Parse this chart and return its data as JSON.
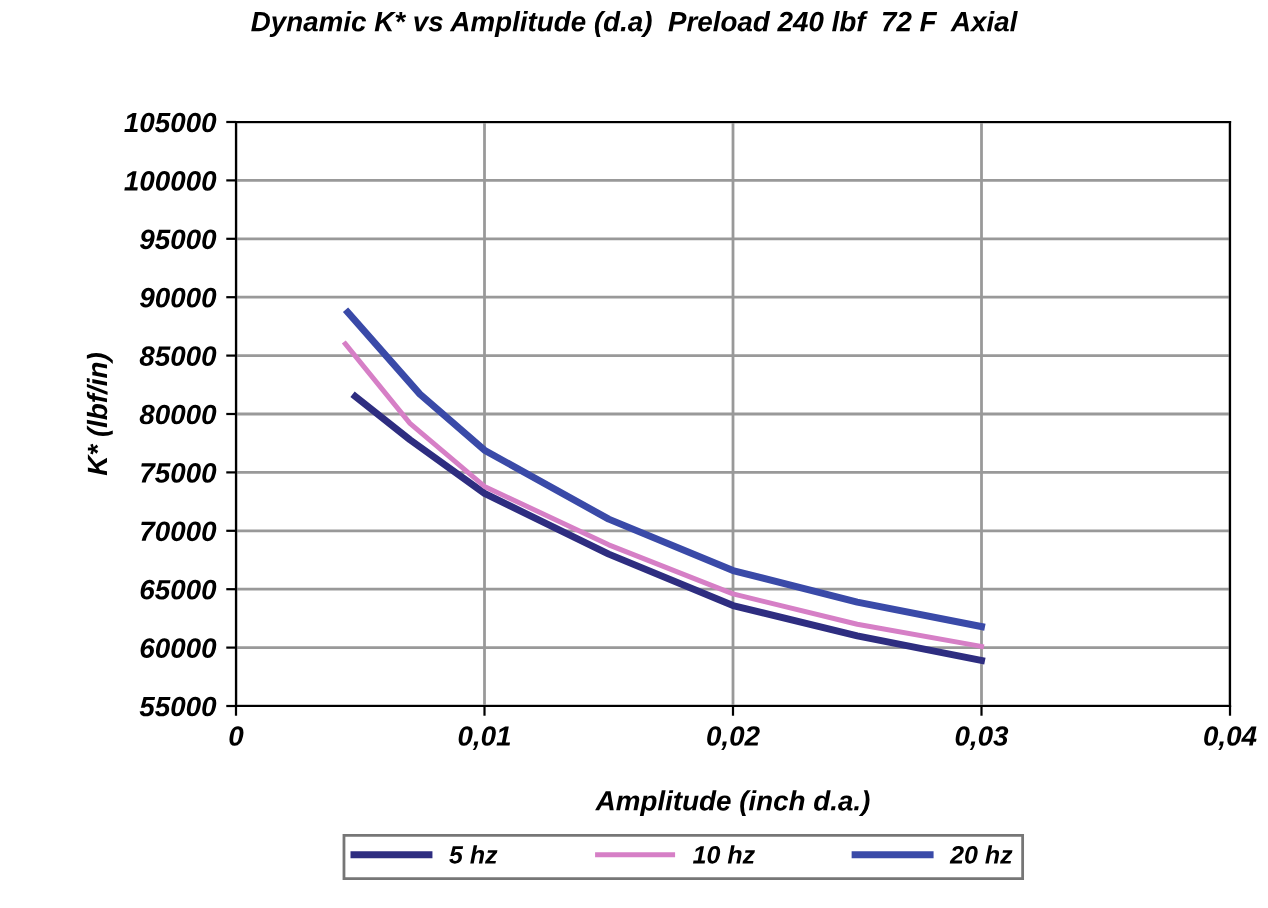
{
  "chart_data": {
    "type": "line",
    "title": "Dynamic K* vs Amplitude (d.a)  Preload 240 lbf  72 F  Axial",
    "xlabel": "Amplitude (inch d.a.)",
    "ylabel": "K* (lbf/in)",
    "xlim": [
      0,
      0.04
    ],
    "xticks": [
      {
        "value": 0,
        "label": "0"
      },
      {
        "value": 0.01,
        "label": "0,01"
      },
      {
        "value": 0.02,
        "label": "0,02"
      },
      {
        "value": 0.03,
        "label": "0,03"
      },
      {
        "value": 0.04,
        "label": "0,04"
      }
    ],
    "ylim": [
      55000,
      105000
    ],
    "yticks": [
      55000,
      60000,
      65000,
      70000,
      75000,
      80000,
      85000,
      90000,
      95000,
      100000,
      105000
    ],
    "grid": true,
    "legend": "bottom",
    "marker": "none",
    "line_style": "solid",
    "series": [
      {
        "name": "5 hz",
        "color": "#2e2d80",
        "x": [
          0.0048,
          0.007,
          0.01,
          0.015,
          0.02,
          0.025,
          0.03
        ],
        "values": [
          81500,
          77800,
          73200,
          68000,
          63600,
          61000,
          58900
        ]
      },
      {
        "name": "10 hz",
        "color": "#d67fc6",
        "x": [
          0.0044,
          0.007,
          0.01,
          0.015,
          0.02,
          0.025,
          0.03
        ],
        "values": [
          86000,
          79200,
          73800,
          68800,
          64600,
          62000,
          60100
        ]
      },
      {
        "name": "20 hz",
        "color": "#3a4aa8",
        "x": [
          0.0045,
          0.0074,
          0.01,
          0.015,
          0.02,
          0.025,
          0.03
        ],
        "values": [
          88700,
          81700,
          76900,
          71000,
          66600,
          63900,
          61800
        ]
      }
    ]
  }
}
